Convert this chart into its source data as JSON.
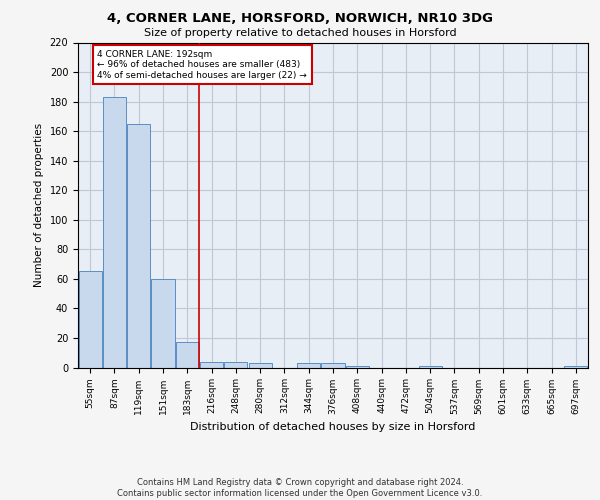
{
  "title1": "4, CORNER LANE, HORSFORD, NORWICH, NR10 3DG",
  "title2": "Size of property relative to detached houses in Horsford",
  "xlabel": "Distribution of detached houses by size in Horsford",
  "ylabel": "Number of detached properties",
  "footer": "Contains HM Land Registry data © Crown copyright and database right 2024.\nContains public sector information licensed under the Open Government Licence v3.0.",
  "bin_labels": [
    "55sqm",
    "87sqm",
    "119sqm",
    "151sqm",
    "183sqm",
    "216sqm",
    "248sqm",
    "280sqm",
    "312sqm",
    "344sqm",
    "376sqm",
    "408sqm",
    "440sqm",
    "472sqm",
    "504sqm",
    "537sqm",
    "569sqm",
    "601sqm",
    "633sqm",
    "665sqm",
    "697sqm"
  ],
  "bar_values": [
    65,
    183,
    165,
    60,
    17,
    4,
    4,
    3,
    0,
    3,
    3,
    1,
    0,
    0,
    1,
    0,
    0,
    0,
    0,
    0,
    1
  ],
  "bar_color": "#c8d9ee",
  "bar_edge_color": "#5b8ec4",
  "grid_color": "#c0c8d8",
  "bg_color": "#e8eef5",
  "fig_bg_color": "#f5f5f5",
  "vline_x_index": 4.5,
  "vline_color": "#cc0000",
  "annotation_text": "4 CORNER LANE: 192sqm\n← 96% of detached houses are smaller (483)\n4% of semi-detached houses are larger (22) →",
  "annotation_box_color": "#ffffff",
  "annotation_box_edgecolor": "#cc0000",
  "ylim": [
    0,
    220
  ],
  "yticks": [
    0,
    20,
    40,
    60,
    80,
    100,
    120,
    140,
    160,
    180,
    200,
    220
  ]
}
